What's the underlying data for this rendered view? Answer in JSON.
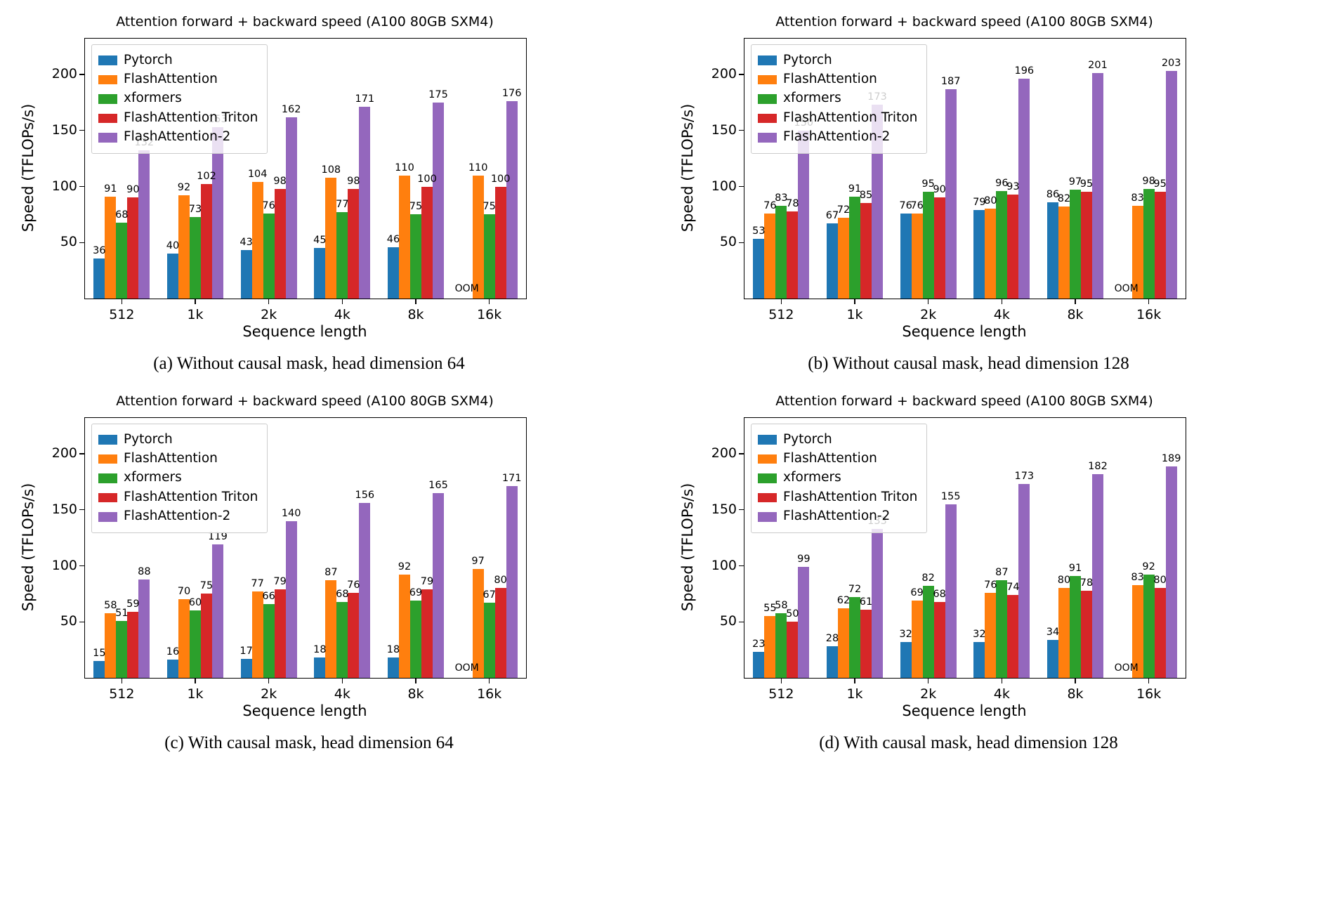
{
  "chart_data": [
    {
      "id": "a",
      "type": "bar",
      "title": "Attention forward + backward speed (A100 80GB SXM4)",
      "xlabel": "Sequence length",
      "ylabel": "Speed (TFLOPs/s)",
      "caption": "(a) Without causal mask, head dimension 64",
      "categories": [
        "512",
        "1k",
        "2k",
        "4k",
        "8k",
        "16k"
      ],
      "ylim": [
        0,
        232
      ],
      "yticks": [
        50,
        100,
        150,
        200
      ],
      "legend_position": "upper left",
      "grid": false,
      "series": [
        {
          "name": "Pytorch",
          "color": "#1f77b4",
          "values": [
            36,
            40,
            43,
            45,
            46,
            null
          ]
        },
        {
          "name": "FlashAttention",
          "color": "#ff7f0e",
          "values": [
            91,
            92,
            104,
            108,
            110,
            110
          ]
        },
        {
          "name": "xformers",
          "color": "#2ca02c",
          "values": [
            68,
            73,
            76,
            77,
            75,
            75
          ]
        },
        {
          "name": "FlashAttention Triton",
          "color": "#d62728",
          "values": [
            90,
            102,
            98,
            98,
            100,
            100
          ]
        },
        {
          "name": "FlashAttention-2",
          "color": "#9467bd",
          "values": [
            132,
            153,
            162,
            171,
            175,
            176
          ]
        }
      ],
      "oom": {
        "series_index": 0,
        "category_index": 5,
        "label": "OOM"
      }
    },
    {
      "id": "b",
      "type": "bar",
      "title": "Attention forward + backward speed (A100 80GB SXM4)",
      "xlabel": "Sequence length",
      "ylabel": "Speed (TFLOPs/s)",
      "caption": "(b) Without causal mask, head dimension 128",
      "categories": [
        "512",
        "1k",
        "2k",
        "4k",
        "8k",
        "16k"
      ],
      "ylim": [
        0,
        232
      ],
      "yticks": [
        50,
        100,
        150,
        200
      ],
      "legend_position": "upper left",
      "grid": false,
      "series": [
        {
          "name": "Pytorch",
          "color": "#1f77b4",
          "values": [
            53,
            67,
            76,
            79,
            86,
            null
          ]
        },
        {
          "name": "FlashAttention",
          "color": "#ff7f0e",
          "values": [
            76,
            72,
            76,
            80,
            82,
            83
          ]
        },
        {
          "name": "xformers",
          "color": "#2ca02c",
          "values": [
            83,
            91,
            95,
            96,
            97,
            98
          ]
        },
        {
          "name": "FlashAttention Triton",
          "color": "#d62728",
          "values": [
            78,
            85,
            90,
            93,
            95,
            95
          ]
        },
        {
          "name": "FlashAttention-2",
          "color": "#9467bd",
          "values": [
            150,
            173,
            187,
            196,
            201,
            203
          ]
        }
      ],
      "oom": {
        "series_index": 0,
        "category_index": 5,
        "label": "OOM"
      }
    },
    {
      "id": "c",
      "type": "bar",
      "title": "Attention forward + backward speed (A100 80GB SXM4)",
      "xlabel": "Sequence length",
      "ylabel": "Speed (TFLOPs/s)",
      "caption": "(c) With causal mask, head dimension 64",
      "categories": [
        "512",
        "1k",
        "2k",
        "4k",
        "8k",
        "16k"
      ],
      "ylim": [
        0,
        232
      ],
      "yticks": [
        50,
        100,
        150,
        200
      ],
      "legend_position": "upper left",
      "grid": false,
      "series": [
        {
          "name": "Pytorch",
          "color": "#1f77b4",
          "values": [
            15,
            16,
            17,
            18,
            18,
            null
          ]
        },
        {
          "name": "FlashAttention",
          "color": "#ff7f0e",
          "values": [
            58,
            70,
            77,
            87,
            92,
            97
          ]
        },
        {
          "name": "xformers",
          "color": "#2ca02c",
          "values": [
            51,
            60,
            66,
            68,
            69,
            67
          ]
        },
        {
          "name": "FlashAttention Triton",
          "color": "#d62728",
          "values": [
            59,
            75,
            79,
            76,
            79,
            80
          ]
        },
        {
          "name": "FlashAttention-2",
          "color": "#9467bd",
          "values": [
            88,
            119,
            140,
            156,
            165,
            171
          ]
        }
      ],
      "oom": {
        "series_index": 0,
        "category_index": 5,
        "label": "OOM"
      }
    },
    {
      "id": "d",
      "type": "bar",
      "title": "Attention forward + backward speed (A100 80GB SXM4)",
      "xlabel": "Sequence length",
      "ylabel": "Speed (TFLOPs/s)",
      "caption": "(d) With causal mask, head dimension 128",
      "categories": [
        "512",
        "1k",
        "2k",
        "4k",
        "8k",
        "16k"
      ],
      "ylim": [
        0,
        232
      ],
      "yticks": [
        50,
        100,
        150,
        200
      ],
      "legend_position": "upper left",
      "grid": false,
      "series": [
        {
          "name": "Pytorch",
          "color": "#1f77b4",
          "values": [
            23,
            28,
            32,
            32,
            34,
            null
          ]
        },
        {
          "name": "FlashAttention",
          "color": "#ff7f0e",
          "values": [
            55,
            62,
            69,
            76,
            80,
            83
          ]
        },
        {
          "name": "xformers",
          "color": "#2ca02c",
          "values": [
            58,
            72,
            82,
            87,
            91,
            92
          ]
        },
        {
          "name": "FlashAttention Triton",
          "color": "#d62728",
          "values": [
            50,
            61,
            68,
            74,
            78,
            80
          ]
        },
        {
          "name": "FlashAttention-2",
          "color": "#9467bd",
          "values": [
            99,
            133,
            155,
            173,
            182,
            189
          ]
        }
      ],
      "oom": {
        "series_index": 0,
        "category_index": 5,
        "label": "OOM"
      }
    }
  ]
}
